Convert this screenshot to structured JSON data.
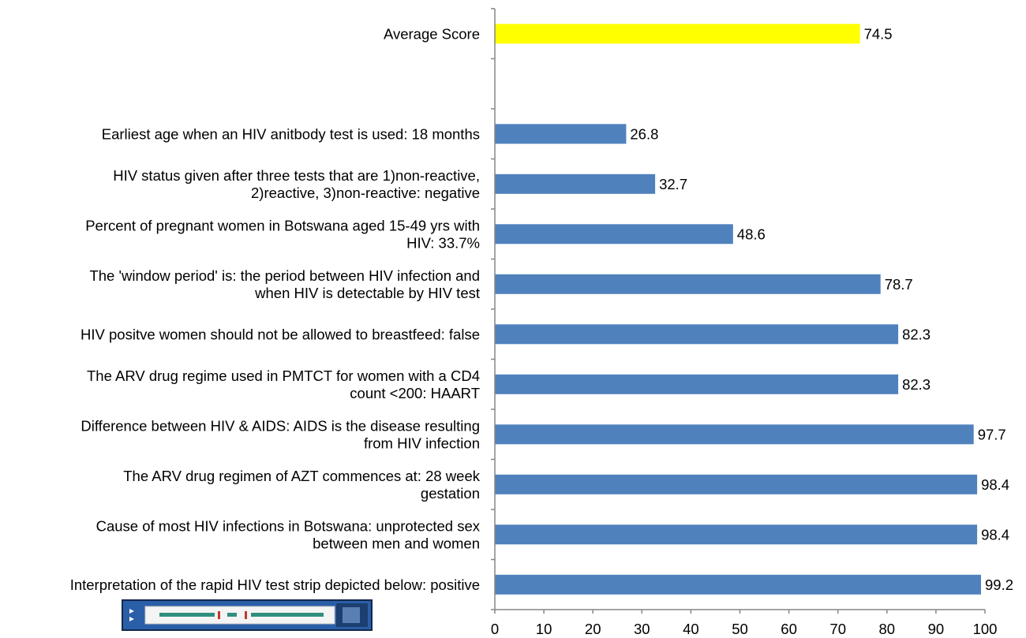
{
  "chart_data": {
    "type": "bar",
    "orientation": "horizontal",
    "categories": [
      "Average Score",
      "",
      "Earliest age when an HIV anitbody test is used: 18 months",
      "HIV status given after three tests that are 1)non-reactive,\n2)reactive, 3)non-reactive: negative",
      "Percent of pregnant women in Botswana aged 15-49 yrs with\nHIV: 33.7%",
      "The 'window period' is: the period between HIV infection and\nwhen HIV is detectable by HIV test",
      "HIV positve women should not be allowed to breastfeed: false",
      "The ARV drug regime used in PMTCT for women with a CD4\ncount <200: HAART",
      "Difference between HIV & AIDS: AIDS is the disease resulting\nfrom HIV infection",
      "The ARV drug regimen of AZT commences at: 28 week\ngestation",
      "Cause of most HIV infections in Botswana: unprotected sex\nbetween men and women",
      "Interpretation of the rapid HIV test strip depicted below: positive"
    ],
    "values": [
      74.5,
      null,
      26.8,
      32.7,
      48.6,
      78.7,
      82.3,
      82.3,
      97.7,
      98.4,
      98.4,
      99.2
    ],
    "value_labels": [
      "74.5",
      "",
      "26.8",
      "32.7",
      "48.6",
      "78.7",
      "82.3",
      "82.3",
      "97.7",
      "98.4",
      "98.4",
      "99.2"
    ],
    "bar_colors": [
      "#FFFF00",
      null,
      "#4F81BD",
      "#4F81BD",
      "#4F81BD",
      "#4F81BD",
      "#4F81BD",
      "#4F81BD",
      "#4F81BD",
      "#4F81BD",
      "#4F81BD",
      "#4F81BD"
    ],
    "x_ticks": [
      "0",
      "10",
      "20",
      "30",
      "40",
      "50",
      "60",
      "70",
      "80",
      "90",
      "100"
    ],
    "xlim": [
      0,
      100
    ],
    "title": "",
    "xlabel": "",
    "ylabel": "",
    "grid": false,
    "legend": "none"
  },
  "annotation_image": {
    "name": "rapid-hiv-test-strip",
    "colors": {
      "body": "#2a5fa8",
      "window": "#ffffff",
      "line": "#c0392b",
      "pad": "#2f8f7e",
      "end": "#1c3f70"
    }
  }
}
